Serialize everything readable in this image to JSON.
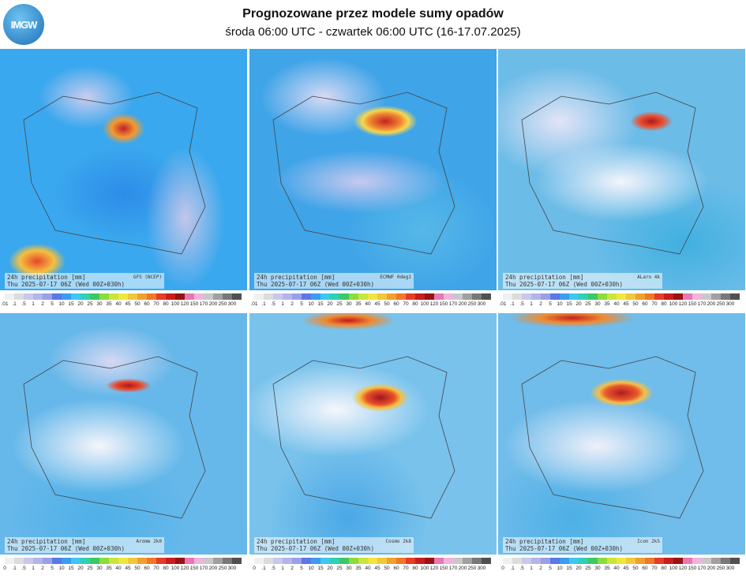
{
  "header": {
    "logo": "IMGW",
    "title": "Prognozowane przez modele sumy opadów",
    "subtitle": "środa 06:00 UTC - czwartek 06:00 UTC (16-17.07.2025)"
  },
  "panels": [
    {
      "label": "24h precipitation [mm]",
      "model": "GFS (NCEP)",
      "valid": "Thu 2025-07-17 06Z (Wed 00Z+030h)",
      "colorbar": [
        ".01",
        ".1",
        ".5",
        "1",
        "2",
        "5",
        "10",
        "15",
        "20",
        "25",
        "30",
        "35",
        "40",
        "45",
        "50",
        "60",
        "70",
        "80",
        "100",
        "120",
        "150",
        "170",
        "200",
        "250",
        "300"
      ]
    },
    {
      "label": "24h precipitation [mm]",
      "model": "ECMWF 0deg1",
      "valid": "Thu 2025-07-17 06Z (Wed 00Z+030h)",
      "colorbar": [
        ".01",
        ".1",
        ".5",
        "1",
        "2",
        "5",
        "10",
        "15",
        "20",
        "25",
        "30",
        "35",
        "40",
        "45",
        "50",
        "60",
        "70",
        "80",
        "100",
        "120",
        "150",
        "170",
        "200",
        "250",
        "300"
      ]
    },
    {
      "label": "24h precipitation [mm]",
      "model": "ALaro 4k",
      "valid": "Thu 2025-07-17 06Z (Wed 00Z+030h)",
      "colorbar": [
        ".01",
        ".1",
        ".5",
        "1",
        "2",
        "5",
        "10",
        "15",
        "20",
        "25",
        "30",
        "35",
        "40",
        "45",
        "50",
        "60",
        "70",
        "80",
        "100",
        "120",
        "150",
        "170",
        "200",
        "250",
        "300"
      ]
    },
    {
      "label": "24h precipitation [mm]",
      "model": "Arome 2k0",
      "valid": "Thu 2025-07-17 06Z (Wed 00Z+030h)",
      "colorbar": [
        "0",
        ".1",
        ".5",
        "1",
        "2",
        "5",
        "10",
        "15",
        "20",
        "25",
        "30",
        "35",
        "40",
        "45",
        "50",
        "60",
        "70",
        "80",
        "100",
        "120",
        "150",
        "170",
        "200",
        "250",
        "300"
      ]
    },
    {
      "label": "24h precipitation [mm]",
      "model": "Cosmo 2k8",
      "valid": "Thu 2025-07-17 06Z (Wed 00Z+030h)",
      "colorbar": [
        "0",
        ".1",
        ".5",
        "1",
        "2",
        "5",
        "10",
        "15",
        "20",
        "25",
        "30",
        "35",
        "40",
        "45",
        "50",
        "60",
        "70",
        "80",
        "100",
        "120",
        "150",
        "170",
        "200",
        "250",
        "300"
      ]
    },
    {
      "label": "24h precipitation [mm]",
      "model": "Icon 2k5",
      "valid": "Thu 2025-07-17 06Z (Wed 00Z+030h)",
      "colorbar": [
        "0",
        ".1",
        ".5",
        "1",
        "2",
        "5",
        "10",
        "15",
        "20",
        "25",
        "30",
        "35",
        "40",
        "45",
        "50",
        "60",
        "70",
        "80",
        "100",
        "120",
        "150",
        "170",
        "200",
        "250",
        "300"
      ]
    }
  ]
}
